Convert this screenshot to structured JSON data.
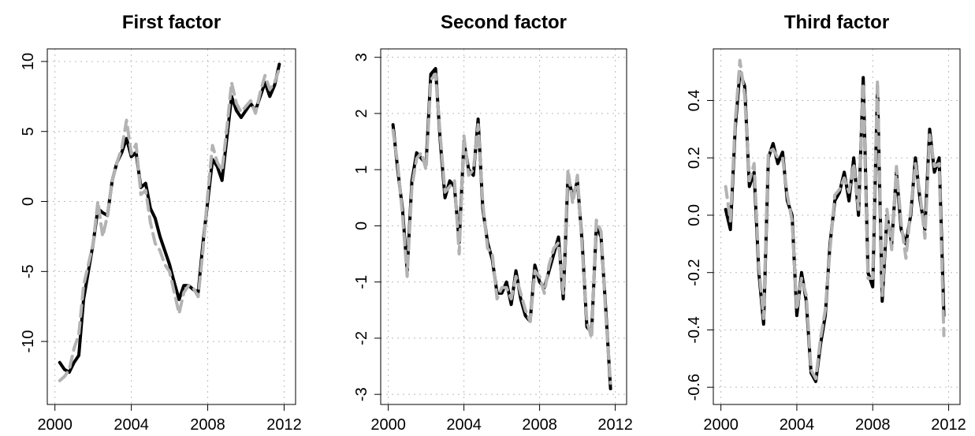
{
  "chart_data": [
    {
      "type": "line",
      "title": "First factor",
      "x": [
        2000.25,
        2000.5,
        2000.75,
        2001,
        2001.25,
        2001.5,
        2001.75,
        2002,
        2002.25,
        2002.5,
        2002.75,
        2003,
        2003.25,
        2003.5,
        2003.75,
        2004,
        2004.25,
        2004.5,
        2004.75,
        2005,
        2005.25,
        2005.5,
        2005.75,
        2006,
        2006.25,
        2006.5,
        2006.75,
        2007,
        2007.25,
        2007.5,
        2007.75,
        2008,
        2008.25,
        2008.5,
        2008.75,
        2009,
        2009.25,
        2009.5,
        2009.75,
        2010,
        2010.25,
        2010.5,
        2010.75,
        2011,
        2011.25,
        2011.5,
        2011.75
      ],
      "series": [
        {
          "color": "#000000",
          "values": [
            -11.5,
            -12,
            -12.2,
            -11.5,
            -11,
            -7,
            -5,
            -3,
            -0.5,
            -0.8,
            -1,
            1.5,
            2.8,
            3.5,
            4.5,
            3.2,
            3.5,
            1,
            1.3,
            -0.5,
            -1.2,
            -2.5,
            -3.5,
            -4.5,
            -5.8,
            -7,
            -6,
            -6,
            -6.3,
            -6.5,
            -3,
            0,
            3,
            2.5,
            1.5,
            4.5,
            7.5,
            6.5,
            6,
            6.5,
            7,
            6.5,
            7.5,
            8.5,
            7.5,
            8.3,
            9.8
          ]
        },
        {
          "color": "#b3b3b3",
          "values": [
            -12.8,
            -12.5,
            -12,
            -10.5,
            -9.5,
            -6,
            -4.5,
            -3,
            0,
            -2.5,
            -1,
            1.5,
            2.8,
            3.8,
            5.8,
            3.4,
            4.1,
            0.5,
            0.8,
            -1.5,
            -3,
            -3.5,
            -4.5,
            -5,
            -6.5,
            -8,
            -6.5,
            -6,
            -6.2,
            -6.8,
            -3.5,
            0.5,
            4,
            2.8,
            2.2,
            5.2,
            8.5,
            7,
            6.4,
            6.8,
            7.2,
            6.3,
            7.8,
            9,
            8,
            8.5,
            9.5
          ]
        }
      ],
      "xlim": [
        1999.6,
        2012.6
      ],
      "xticks": [
        2000,
        2004,
        2008,
        2012
      ],
      "ylim": [
        -14.5,
        10.9
      ],
      "yticks": [
        -10,
        -5,
        0,
        5,
        10
      ],
      "grid": true
    },
    {
      "type": "line",
      "title": "Second factor",
      "x": [
        2000.25,
        2000.5,
        2000.75,
        2001,
        2001.25,
        2001.5,
        2001.75,
        2002,
        2002.25,
        2002.5,
        2002.75,
        2003,
        2003.25,
        2003.5,
        2003.75,
        2004,
        2004.25,
        2004.5,
        2004.75,
        2005,
        2005.25,
        2005.5,
        2005.75,
        2006,
        2006.25,
        2006.5,
        2006.75,
        2007,
        2007.25,
        2007.5,
        2007.75,
        2008,
        2008.25,
        2008.5,
        2008.75,
        2009,
        2009.25,
        2009.5,
        2009.75,
        2010,
        2010.25,
        2010.5,
        2010.75,
        2011,
        2011.25,
        2011.5,
        2011.75
      ],
      "series": [
        {
          "color": "#000000",
          "values": [
            1.8,
            1,
            0.3,
            -0.8,
            0.8,
            1.3,
            1.2,
            1.1,
            2.7,
            2.8,
            1.5,
            0.5,
            0.8,
            0.7,
            -0.3,
            1.5,
            1,
            0.9,
            1.9,
            0.3,
            -0.3,
            -0.6,
            -1.2,
            -1.2,
            -1.0,
            -1.4,
            -0.8,
            -1.3,
            -1.6,
            -1.7,
            -0.7,
            -1.0,
            -1.1,
            -0.8,
            -0.5,
            -0.2,
            -1.3,
            0.9,
            0.5,
            0.8,
            -0.3,
            -1.8,
            -1.9,
            0.0,
            -0.2,
            -1.5,
            -2.9
          ]
        },
        {
          "color": "#b3b3b3",
          "values": [
            1.7,
            1.1,
            0.2,
            -0.9,
            0.7,
            1.2,
            1.3,
            1.0,
            2.6,
            2.7,
            1.6,
            0.6,
            0.7,
            0.8,
            -0.5,
            1.6,
            0.9,
            1.0,
            1.8,
            0.4,
            -0.4,
            -0.5,
            -1.3,
            -1.1,
            -1.1,
            -1.3,
            -0.9,
            -1.2,
            -1.5,
            -1.7,
            -0.8,
            -0.9,
            -1.2,
            -0.7,
            -0.4,
            -0.3,
            -1.2,
            1.0,
            0.4,
            0.9,
            -0.4,
            -1.7,
            -2.0,
            0.1,
            -0.1,
            -1.6,
            -2.8
          ]
        }
      ],
      "xlim": [
        1999.6,
        2012.6
      ],
      "xticks": [
        2000,
        2004,
        2008,
        2012
      ],
      "ylim": [
        -3.18,
        3.15
      ],
      "yticks": [
        -3,
        -2,
        -1,
        0,
        1,
        2,
        3
      ],
      "grid": true
    },
    {
      "type": "line",
      "title": "Third factor",
      "x": [
        2000.25,
        2000.5,
        2000.75,
        2001,
        2001.25,
        2001.5,
        2001.75,
        2002,
        2002.25,
        2002.5,
        2002.75,
        2003,
        2003.25,
        2003.5,
        2003.75,
        2004,
        2004.25,
        2004.5,
        2004.75,
        2005,
        2005.25,
        2005.5,
        2005.75,
        2006,
        2006.25,
        2006.5,
        2006.75,
        2007,
        2007.25,
        2007.5,
        2007.75,
        2008,
        2008.25,
        2008.5,
        2008.75,
        2009,
        2009.25,
        2009.5,
        2009.75,
        2010,
        2010.25,
        2010.5,
        2010.75,
        2011,
        2011.25,
        2011.5,
        2011.75
      ],
      "series": [
        {
          "color": "#000000",
          "values": [
            0.02,
            -0.05,
            0.3,
            0.5,
            0.45,
            0.1,
            0.15,
            -0.2,
            -0.38,
            0.2,
            0.25,
            0.18,
            0.22,
            0.05,
            0.0,
            -0.35,
            -0.2,
            -0.3,
            -0.55,
            -0.58,
            -0.45,
            -0.35,
            -0.1,
            0.05,
            0.08,
            0.15,
            0.05,
            0.2,
            0.0,
            0.48,
            -0.2,
            -0.25,
            0.45,
            -0.3,
            0.0,
            -0.1,
            0.15,
            -0.05,
            -0.1,
            0.0,
            0.2,
            0.05,
            -0.05,
            0.3,
            0.15,
            0.2,
            -0.35
          ]
        },
        {
          "color": "#b3b3b3",
          "values": [
            0.1,
            -0.02,
            0.32,
            0.54,
            0.42,
            0.12,
            0.18,
            -0.18,
            -0.36,
            0.22,
            0.23,
            0.2,
            0.2,
            0.07,
            -0.02,
            -0.33,
            -0.22,
            -0.28,
            -0.54,
            -0.57,
            -0.43,
            -0.33,
            -0.12,
            0.07,
            0.09,
            0.13,
            0.08,
            0.18,
            0.02,
            0.46,
            -0.22,
            -0.22,
            0.47,
            -0.28,
            0.02,
            -0.12,
            0.17,
            -0.03,
            -0.15,
            0.02,
            0.18,
            0.07,
            -0.08,
            0.28,
            0.17,
            0.18,
            -0.42
          ]
        }
      ],
      "xlim": [
        1999.6,
        2012.6
      ],
      "xticks": [
        2000,
        2004,
        2008,
        2012
      ],
      "ylim": [
        -0.66,
        0.58
      ],
      "yticks": [
        -0.6,
        -0.4,
        -0.2,
        {
          "value": 0,
          "label": "0.0"
        },
        0.2,
        0.4
      ],
      "grid": true
    }
  ]
}
